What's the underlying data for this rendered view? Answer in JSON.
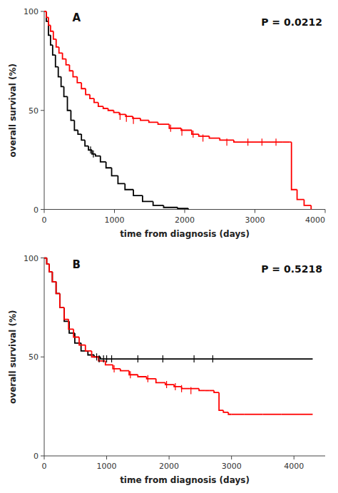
{
  "chart_data": [
    {
      "type": "step",
      "xlabel": "time from diagnosis (days)",
      "ylabel": "overall survival (%)",
      "annotations": [
        {
          "text": "A"
        },
        {
          "text": "P = 0.0212"
        }
      ],
      "xlim": [
        0,
        4000
      ],
      "ylim": [
        0,
        100
      ],
      "xticks": [
        0,
        1000,
        2000,
        3000,
        4000
      ],
      "yticks": [
        0,
        50,
        100
      ],
      "grid": false,
      "series": [
        {
          "type": "step",
          "color": "#000000",
          "x": [
            0,
            30,
            60,
            90,
            120,
            160,
            200,
            240,
            280,
            330,
            380,
            430,
            480,
            530,
            580,
            630,
            680,
            730,
            800,
            880,
            960,
            1050,
            1150,
            1270,
            1400,
            1550,
            1700,
            1900,
            2050
          ],
          "values": [
            100,
            95,
            88,
            83,
            78,
            72,
            67,
            62,
            57,
            50,
            45,
            40,
            38,
            35,
            32,
            30,
            28,
            27,
            24,
            21,
            17,
            13,
            10,
            7,
            4,
            2,
            1,
            0.5,
            0
          ]
        },
        {
          "type": "step",
          "color": "#ff0000",
          "x": [
            0,
            30,
            60,
            90,
            130,
            170,
            210,
            260,
            310,
            360,
            410,
            470,
            530,
            590,
            650,
            710,
            770,
            840,
            910,
            990,
            1070,
            1160,
            1260,
            1370,
            1490,
            1620,
            1780,
            1950,
            2100,
            2200,
            2350,
            2500,
            2700,
            2900,
            3100,
            3300,
            3400,
            3500,
            3520,
            3600,
            3700,
            3800
          ],
          "values": [
            100,
            97,
            93,
            90,
            86,
            82,
            79,
            76,
            73,
            70,
            67,
            64,
            61,
            58,
            56,
            54,
            52,
            51,
            50,
            49,
            48,
            47,
            46,
            45,
            44,
            43,
            41,
            40,
            38,
            37,
            36,
            35,
            34,
            34,
            34,
            34,
            34,
            34,
            10,
            5,
            2,
            0
          ]
        },
        {
          "type": "scatter",
          "marker": "vline",
          "color": "#000000",
          "x": [
            660,
            700
          ],
          "values": [
            30,
            28
          ]
        },
        {
          "type": "scatter",
          "marker": "vline",
          "color": "#ff0000",
          "x": [
            1080,
            1170,
            1270,
            1800,
            1960,
            2120,
            2260,
            2600,
            2900,
            3100,
            3300
          ],
          "values": [
            47,
            46,
            45,
            41,
            39,
            38,
            36,
            34,
            34,
            34,
            34
          ]
        }
      ]
    },
    {
      "type": "step",
      "xlabel": "time from diagnosis (days)",
      "ylabel": "overall survival (%)",
      "annotations": [
        {
          "text": "B"
        },
        {
          "text": "P = 0.5218"
        }
      ],
      "xlim": [
        0,
        4500
      ],
      "ylim": [
        0,
        100
      ],
      "xticks": [
        0,
        1000,
        2000,
        3000,
        4000
      ],
      "yticks": [
        0,
        50,
        100
      ],
      "grid": false,
      "series": [
        {
          "type": "step",
          "color": "#000000",
          "x": [
            0,
            40,
            80,
            130,
            190,
            250,
            320,
            400,
            490,
            590,
            700,
            800,
            900,
            1000,
            4300
          ],
          "values": [
            100,
            97,
            93,
            88,
            82,
            75,
            68,
            62,
            57,
            53,
            51,
            50,
            49,
            49,
            49
          ]
        },
        {
          "type": "step",
          "color": "#ff0000",
          "x": [
            0,
            40,
            80,
            130,
            190,
            250,
            320,
            390,
            470,
            560,
            660,
            760,
            870,
            980,
            1100,
            1220,
            1360,
            1500,
            1640,
            1790,
            1940,
            2080,
            2200,
            2340,
            2480,
            2580,
            2640,
            2720,
            2800,
            2870,
            2950,
            3000,
            3200,
            3500,
            3800,
            4100,
            4300
          ],
          "values": [
            100,
            97,
            93,
            88,
            82,
            75,
            69,
            64,
            60,
            56,
            53,
            50,
            48,
            46,
            44,
            43,
            41,
            40,
            39,
            37,
            36,
            35,
            34,
            34,
            33,
            33,
            33,
            32,
            23,
            22,
            21,
            21,
            21,
            21,
            21,
            21,
            21
          ]
        },
        {
          "type": "scatter",
          "marker": "vline",
          "color": "#000000",
          "x": [
            840,
            880,
            950,
            1000,
            1080,
            1500,
            1900,
            2400,
            2700
          ],
          "values": [
            50,
            49,
            49,
            49,
            49,
            49,
            49,
            49,
            49
          ]
        },
        {
          "type": "scatter",
          "marker": "vline",
          "color": "#ff0000",
          "x": [
            1120,
            1380,
            1660,
            1960,
            2100,
            2200,
            2350
          ],
          "values": [
            44,
            41,
            39,
            36,
            35,
            34,
            33
          ]
        }
      ]
    }
  ]
}
